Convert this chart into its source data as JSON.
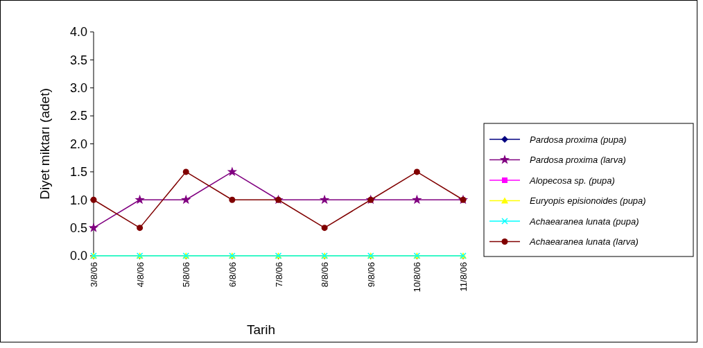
{
  "chart_data": {
    "type": "line",
    "xlabel": "Tarih",
    "ylabel": "Diyet miktarı (adet)",
    "categories": [
      "3/8/06",
      "4/8/06",
      "5/8/06",
      "6/8/06",
      "7/8/06",
      "8/8/06",
      "9/8/06",
      "10/8/06",
      "11/8/06"
    ],
    "ylim": [
      0,
      4
    ],
    "yticks": [
      {
        "value": 0,
        "label": "0.0"
      },
      {
        "value": 0.5,
        "label": "0.5"
      },
      {
        "value": 1,
        "label": "1.0"
      },
      {
        "value": 1.5,
        "label": "1.5"
      },
      {
        "value": 2,
        "label": "2.0"
      },
      {
        "value": 2.5,
        "label": "2.5"
      },
      {
        "value": 3,
        "label": "3.0"
      },
      {
        "value": 3.5,
        "label": "3.5"
      },
      {
        "value": 4,
        "label": "4.0"
      }
    ],
    "grid": false,
    "legend": "right",
    "line_style": "solid",
    "series": [
      {
        "name": "Pardosa proxima (pupa)",
        "color": "#000080",
        "marker": "diamond",
        "values": [
          null,
          null,
          null,
          null,
          null,
          null,
          null,
          null,
          null
        ]
      },
      {
        "name": "Pardosa proxima (larva)",
        "color": "#800080",
        "marker": "star",
        "values": [
          0.5,
          1,
          1,
          1.5,
          1,
          1,
          1,
          1,
          1
        ]
      },
      {
        "name": "Alopecosa sp. (pupa)",
        "color": "#ff00ff",
        "marker": "square",
        "values": [
          null,
          null,
          null,
          null,
          null,
          null,
          null,
          null,
          null
        ]
      },
      {
        "name": "Euryopis episionoides (pupa)",
        "color": "#ffff00",
        "marker": "triangle",
        "values": [
          0,
          0,
          0,
          0,
          0,
          0,
          0,
          0,
          0
        ]
      },
      {
        "name": "Achaearanea lunata (pupa)",
        "color": "#00ffff",
        "marker": "cross",
        "values": [
          0,
          0,
          0,
          0,
          0,
          0,
          0,
          0,
          0
        ]
      },
      {
        "name": "Achaearanea lunata (larva)",
        "color": "#800000",
        "marker": "circle",
        "values": [
          1,
          0.5,
          1.5,
          1,
          1,
          0.5,
          1,
          1.5,
          1
        ]
      }
    ]
  }
}
